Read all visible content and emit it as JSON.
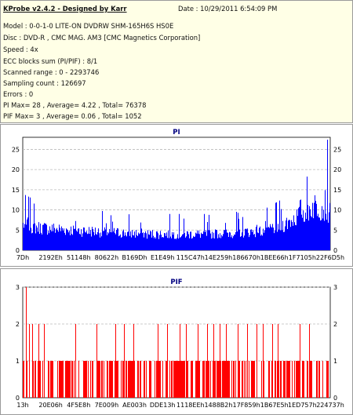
{
  "header": {
    "title": "KProbe v2.4.2 - Designed by Karr",
    "date": "Date : 10/29/2011 6:54:09 PM",
    "lines": [
      "Model : 0-0-1-0 LITE-ON DVDRW SHM-165H6S HS0E",
      "Disc : DVD-R , CMC MAG. AM3 [CMC Magnetics Corporation]",
      "Speed : 4x",
      "ECC blocks sum (PI/PIF) : 8/1",
      "Scanned range : 0 - 2293746",
      "Sampling count : 126697",
      "Errors : 0",
      "PI Max= 28 , Average= 4.22 , Total= 76378",
      "PIF Max= 3 , Average= 0.06 , Total= 1052"
    ]
  },
  "colors": {
    "panel_bg": "#ffffe6",
    "pi_series": "#0000ff",
    "pif_series": "#ff0000",
    "title_text": "#000080"
  },
  "chart_data": [
    {
      "type": "bar",
      "title": "PI",
      "series": [],
      "x_ticks": [
        "7Dh",
        "2192Eh",
        "51148h",
        "80622h",
        "B169Dh",
        "E1E49h",
        "115C47h",
        "14E259h",
        "186670h",
        "1BEE66h",
        "1F7105h",
        "22F6D5h"
      ],
      "y_ticks": [
        0,
        5,
        10,
        15,
        20,
        25
      ],
      "ylim": [
        0,
        28
      ],
      "max": 28,
      "average": 4.22,
      "profile": [
        {
          "pos": 0.0,
          "base": 8,
          "spike": 14
        },
        {
          "pos": 0.05,
          "base": 7,
          "spike": 12
        },
        {
          "pos": 0.2,
          "base": 6,
          "spike": 10
        },
        {
          "pos": 0.4,
          "base": 5,
          "spike": 9
        },
        {
          "pos": 0.6,
          "base": 5,
          "spike": 9
        },
        {
          "pos": 0.78,
          "base": 6,
          "spike": 10
        },
        {
          "pos": 0.85,
          "base": 8,
          "spike": 13
        },
        {
          "pos": 0.9,
          "base": 11,
          "spike": 18
        },
        {
          "pos": 0.95,
          "base": 14,
          "spike": 25
        },
        {
          "pos": 1.0,
          "base": 12,
          "spike": 28
        }
      ],
      "grid": true
    },
    {
      "type": "bar",
      "title": "PIF",
      "series": [],
      "x_ticks": [
        "13h",
        "20E06h",
        "4F5E8h",
        "7E009h",
        "AE003h",
        "DDE13h",
        "1118EEh",
        "1488B2h",
        "17F859h",
        "1B67E5h",
        "1ED757h",
        "224737h"
      ],
      "y_ticks": [
        0,
        1,
        2,
        3
      ],
      "ylim": [
        0,
        3
      ],
      "max": 3,
      "average": 0.06,
      "level3_at": [
        0.01
      ],
      "level2_at": [
        0.02,
        0.03,
        0.05,
        0.07,
        0.17,
        0.24,
        0.3,
        0.33,
        0.36,
        0.44,
        0.47,
        0.51,
        0.53,
        0.57,
        0.6,
        0.62,
        0.64,
        0.66,
        0.7,
        0.73,
        0.76,
        0.78,
        0.81,
        0.83,
        0.9,
        0.93
      ],
      "density": 0.55,
      "grid": true
    }
  ]
}
